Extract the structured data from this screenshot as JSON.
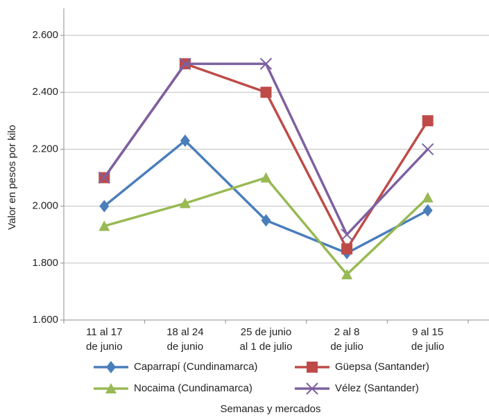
{
  "chart_data": {
    "type": "line",
    "y_label": "Valor en pesos por kilo",
    "x_label": "Semanas y mercados",
    "categories": [
      [
        "11 al 17",
        "de junio"
      ],
      [
        "18 al 24",
        "de junio"
      ],
      [
        "25 de junio",
        "al 1 de julio"
      ],
      [
        "2 al 8",
        "de julio"
      ],
      [
        "9 al 15",
        "de julio"
      ]
    ],
    "series": [
      {
        "name": "Caparrapí (Cundinamarca)",
        "color": "#4a7ebb",
        "marker": "diamond",
        "values": [
          2000,
          2230,
          1950,
          1835,
          1985
        ]
      },
      {
        "name": "Güepsa (Santander)",
        "color": "#be4b48",
        "marker": "square",
        "values": [
          2100,
          2500,
          2400,
          1850,
          2300
        ]
      },
      {
        "name": "Nocaima (Cundinamarca)",
        "color": "#98b954",
        "marker": "triangle",
        "values": [
          1930,
          2010,
          2100,
          1760,
          2030
        ]
      },
      {
        "name": "Vélez (Santander)",
        "color": "#7d60a0",
        "marker": "x",
        "values": [
          2100,
          2500,
          2500,
          1900,
          2200
        ]
      }
    ],
    "ylim": [
      1600,
      2600
    ],
    "yticks": [
      {
        "value": 1600,
        "label": "1.600"
      },
      {
        "value": 1800,
        "label": "1.800"
      },
      {
        "value": 2000,
        "label": "2.000"
      },
      {
        "value": 2200,
        "label": "2.200"
      },
      {
        "value": 2400,
        "label": "2.400"
      },
      {
        "value": 2600,
        "label": "2.600"
      }
    ],
    "grid": true
  }
}
